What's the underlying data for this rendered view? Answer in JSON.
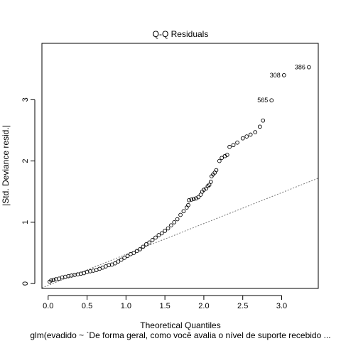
{
  "chart_data": {
    "type": "scatter",
    "title": "Q-Q Residuals",
    "xlabel": "Theoretical Quantiles",
    "ylabel": "|Std. Deviance resid.|",
    "subtitle": "glm(evadido ~ `De forma geral, como você avalia o nível de suporte recebido ...",
    "xlim": [
      -0.08,
      3.47
    ],
    "ylim": [
      -0.08,
      3.92
    ],
    "x_ticks": [
      0.0,
      0.5,
      1.0,
      1.5,
      2.0,
      2.5,
      3.0
    ],
    "x_tick_labels": [
      "0.0",
      "0.5",
      "1.0",
      "1.5",
      "2.0",
      "2.5",
      "3.0"
    ],
    "y_ticks": [
      0,
      1,
      2,
      3
    ],
    "y_tick_labels": [
      "0",
      "1",
      "2",
      "3"
    ],
    "grid": false,
    "reference_line": {
      "x": [
        -0.08,
        3.47
      ],
      "y": [
        -0.07,
        1.72
      ],
      "style": "dotted",
      "color": "#777777"
    },
    "series": [
      {
        "marker": "open-circle",
        "points": [
          [
            0.02,
            0.03
          ],
          [
            0.04,
            0.05
          ],
          [
            0.07,
            0.06
          ],
          [
            0.1,
            0.07
          ],
          [
            0.14,
            0.08
          ],
          [
            0.18,
            0.1
          ],
          [
            0.22,
            0.11
          ],
          [
            0.26,
            0.12
          ],
          [
            0.3,
            0.13
          ],
          [
            0.34,
            0.14
          ],
          [
            0.38,
            0.15
          ],
          [
            0.42,
            0.16
          ],
          [
            0.46,
            0.17
          ],
          [
            0.5,
            0.19
          ],
          [
            0.54,
            0.2
          ],
          [
            0.58,
            0.21
          ],
          [
            0.62,
            0.22
          ],
          [
            0.66,
            0.24
          ],
          [
            0.7,
            0.26
          ],
          [
            0.74,
            0.28
          ],
          [
            0.78,
            0.3
          ],
          [
            0.82,
            0.31
          ],
          [
            0.86,
            0.33
          ],
          [
            0.9,
            0.36
          ],
          [
            0.94,
            0.39
          ],
          [
            0.98,
            0.42
          ],
          [
            1.02,
            0.45
          ],
          [
            1.06,
            0.48
          ],
          [
            1.1,
            0.5
          ],
          [
            1.14,
            0.53
          ],
          [
            1.18,
            0.56
          ],
          [
            1.22,
            0.6
          ],
          [
            1.26,
            0.64
          ],
          [
            1.3,
            0.67
          ],
          [
            1.34,
            0.71
          ],
          [
            1.38,
            0.75
          ],
          [
            1.42,
            0.79
          ],
          [
            1.46,
            0.82
          ],
          [
            1.5,
            0.86
          ],
          [
            1.54,
            0.9
          ],
          [
            1.58,
            0.95
          ],
          [
            1.62,
            1.0
          ],
          [
            1.66,
            1.05
          ],
          [
            1.7,
            1.12
          ],
          [
            1.74,
            1.18
          ],
          [
            1.78,
            1.24
          ],
          [
            1.8,
            1.28
          ],
          [
            1.81,
            1.36
          ],
          [
            1.84,
            1.37
          ],
          [
            1.87,
            1.38
          ],
          [
            1.9,
            1.39
          ],
          [
            1.93,
            1.41
          ],
          [
            1.96,
            1.45
          ],
          [
            1.98,
            1.5
          ],
          [
            2.0,
            1.53
          ],
          [
            2.03,
            1.55
          ],
          [
            2.05,
            1.59
          ],
          [
            2.07,
            1.61
          ],
          [
            2.09,
            1.66
          ],
          [
            2.1,
            1.75
          ],
          [
            2.12,
            1.78
          ],
          [
            2.14,
            1.81
          ],
          [
            2.16,
            1.85
          ],
          [
            2.2,
            2.0
          ],
          [
            2.23,
            2.05
          ],
          [
            2.27,
            2.08
          ],
          [
            2.3,
            2.1
          ],
          [
            2.33,
            2.23
          ],
          [
            2.38,
            2.26
          ],
          [
            2.43,
            2.3
          ],
          [
            2.5,
            2.37
          ],
          [
            2.55,
            2.4
          ],
          [
            2.6,
            2.43
          ],
          [
            2.66,
            2.47
          ],
          [
            2.72,
            2.56
          ],
          [
            2.76,
            2.66
          ],
          [
            2.87,
            2.99
          ],
          [
            3.03,
            3.4
          ],
          [
            3.35,
            3.53
          ]
        ]
      }
    ],
    "annotations": [
      {
        "label": "386",
        "x": 3.35,
        "y": 3.53
      },
      {
        "label": "308",
        "x": 3.03,
        "y": 3.4
      },
      {
        "label": "565",
        "x": 2.87,
        "y": 2.99
      }
    ]
  }
}
